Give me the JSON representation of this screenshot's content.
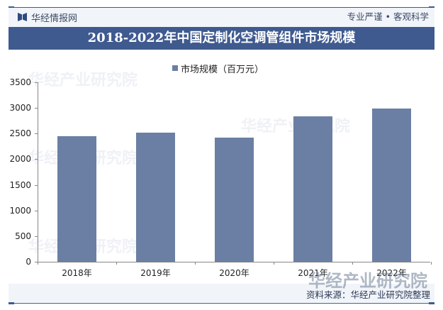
{
  "header": {
    "brand_name": "华经情报网",
    "brand_icon": "book-logo-icon",
    "slogan": "专业严谨 • 客观科学"
  },
  "title": "2018-2022年中国定制化空调管组件市场规模",
  "legend": {
    "label": "市场规模（百万元）",
    "color": "#6a7fa3"
  },
  "footer": {
    "source": "资料来源：华经产业研究院整理",
    "watermark": "华经产业研究院"
  },
  "colors": {
    "accent": "#3f5a8f",
    "bar": "#6a7fa3",
    "band": "#f1f4f9"
  },
  "chart_data": {
    "type": "bar",
    "title": "2018-2022年中国定制化空调管组件市场规模",
    "categories": [
      "2018年",
      "2019年",
      "2020年",
      "2021年",
      "2022年"
    ],
    "series": [
      {
        "name": "市场规模（百万元）",
        "values": [
          2450,
          2520,
          2420,
          2840,
          2990
        ]
      }
    ],
    "xlabel": "",
    "ylabel": "",
    "ylim": [
      0,
      3500
    ],
    "yticks": [
      "0",
      "500",
      "1000",
      "1500",
      "2000",
      "2500",
      "3000",
      "3500"
    ],
    "grid": false,
    "legend_position": "top"
  }
}
